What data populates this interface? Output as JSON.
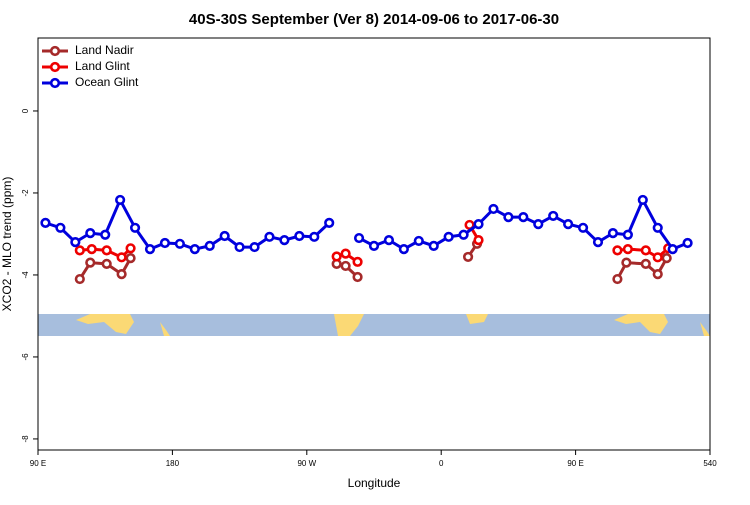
{
  "chart_data": {
    "type": "line",
    "title": "40S-30S September (Ver 8)   2014-09-06 to 2017-06-30",
    "xlabel": "Longitude",
    "ylabel": "XCO2 - MLO trend (ppm)",
    "xlim": [
      90,
      540
    ],
    "ylim": [
      -8.27,
      1.78
    ],
    "xticks": [
      {
        "value": 90,
        "label": "90 E"
      },
      180,
      {
        "value": 270,
        "label": "90 W"
      },
      {
        "value": 360,
        "label": "0"
      },
      {
        "value": 450,
        "label": "90 E"
      },
      540
    ],
    "yticks": [
      0,
      -2,
      -4,
      -6,
      -8
    ],
    "legend": "top-left",
    "series": [
      {
        "name": "Land Nadir",
        "color": "#a52a2a",
        "x": [
          118,
          125,
          136,
          146,
          152,
          290,
          296,
          304,
          378,
          384,
          478,
          484,
          497,
          505,
          511
        ],
        "values": [
          -4.1,
          -3.7,
          -3.73,
          -3.98,
          -3.59,
          -3.73,
          -3.78,
          -4.05,
          -3.56,
          -3.24,
          -4.1,
          -3.7,
          -3.73,
          -3.98,
          -3.59
        ]
      },
      {
        "name": "Land Glint",
        "color": "#ee0000",
        "x": [
          118,
          126,
          136,
          146,
          152,
          290,
          296,
          304,
          379,
          385,
          478,
          485,
          497,
          505,
          512
        ],
        "values": [
          -3.4,
          -3.37,
          -3.4,
          -3.57,
          -3.35,
          -3.55,
          -3.48,
          -3.68,
          -2.78,
          -3.15,
          -3.4,
          -3.37,
          -3.4,
          -3.57,
          -3.35
        ]
      },
      {
        "name": "Ocean Glint",
        "color": "#0000dd",
        "x": [
          95,
          105,
          115,
          125,
          135,
          145,
          155,
          165,
          175,
          185,
          195,
          205,
          215,
          225,
          235,
          245,
          255,
          265,
          275,
          285,
          305,
          315,
          325,
          335,
          345,
          355,
          365,
          375,
          385,
          395,
          405,
          415,
          425,
          435,
          445,
          455,
          465,
          475,
          485,
          495,
          505,
          515,
          525
        ],
        "values": [
          -2.73,
          -2.85,
          -3.2,
          -2.98,
          -3.02,
          -2.17,
          -2.85,
          -3.37,
          -3.22,
          -3.24,
          -3.37,
          -3.29,
          -3.05,
          -3.32,
          -3.32,
          -3.07,
          -3.15,
          -3.05,
          -3.07,
          -2.73,
          -3.1,
          -3.29,
          -3.15,
          -3.37,
          -3.17,
          -3.29,
          -3.07,
          -3.02,
          -2.76,
          -2.39,
          -2.59,
          -2.59,
          -2.76,
          -2.56,
          -2.76,
          -2.85,
          -3.2,
          -2.98,
          -3.02,
          -2.17,
          -2.85,
          -3.37,
          -3.22
        ]
      }
    ]
  }
}
